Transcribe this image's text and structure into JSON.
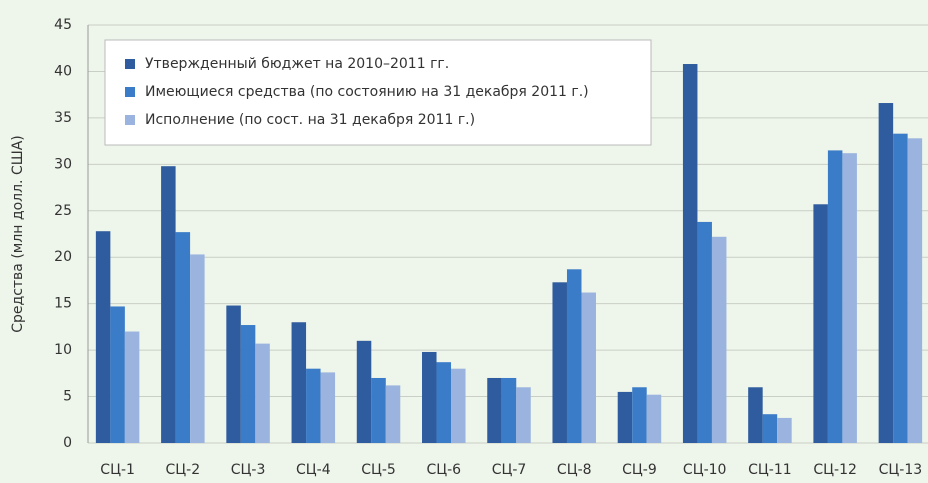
{
  "chart_data": {
    "type": "bar",
    "ylabel": "Средства (млн долл. США)",
    "categories": [
      "СЦ-1",
      "СЦ-2",
      "СЦ-3",
      "СЦ-4",
      "СЦ-5",
      "СЦ-6",
      "СЦ-7",
      "СЦ-8",
      "СЦ-9",
      "СЦ-10",
      "СЦ-11",
      "СЦ-12",
      "СЦ-13"
    ],
    "series": [
      {
        "name": "Утвержденный бюджет на 2010–2011 гг.",
        "color": "#2f5c9e",
        "values": [
          22.8,
          29.8,
          14.8,
          13,
          11,
          9.8,
          7,
          17.3,
          5.5,
          40.8,
          6,
          25.7,
          36.6
        ]
      },
      {
        "name": "Имеющиеся средства (по состоянию на 31 декабря 2011 г.)",
        "color": "#3b7cc9",
        "values": [
          14.7,
          22.7,
          12.7,
          8,
          7,
          8.7,
          7,
          18.7,
          6,
          23.8,
          3.1,
          31.5,
          33.3
        ]
      },
      {
        "name": "Исполнение (по сост. на 31 декабря 2011 г.)",
        "color": "#9ab4df",
        "values": [
          12,
          20.3,
          10.7,
          7.6,
          6.2,
          8,
          6,
          16.2,
          5.2,
          22.2,
          2.7,
          31.2,
          32.8
        ]
      }
    ],
    "ylim": [
      0,
      45
    ],
    "yticks": [
      0,
      5,
      10,
      15,
      20,
      25,
      30,
      35,
      40,
      45
    ],
    "grid": true,
    "legend": "upper left"
  }
}
